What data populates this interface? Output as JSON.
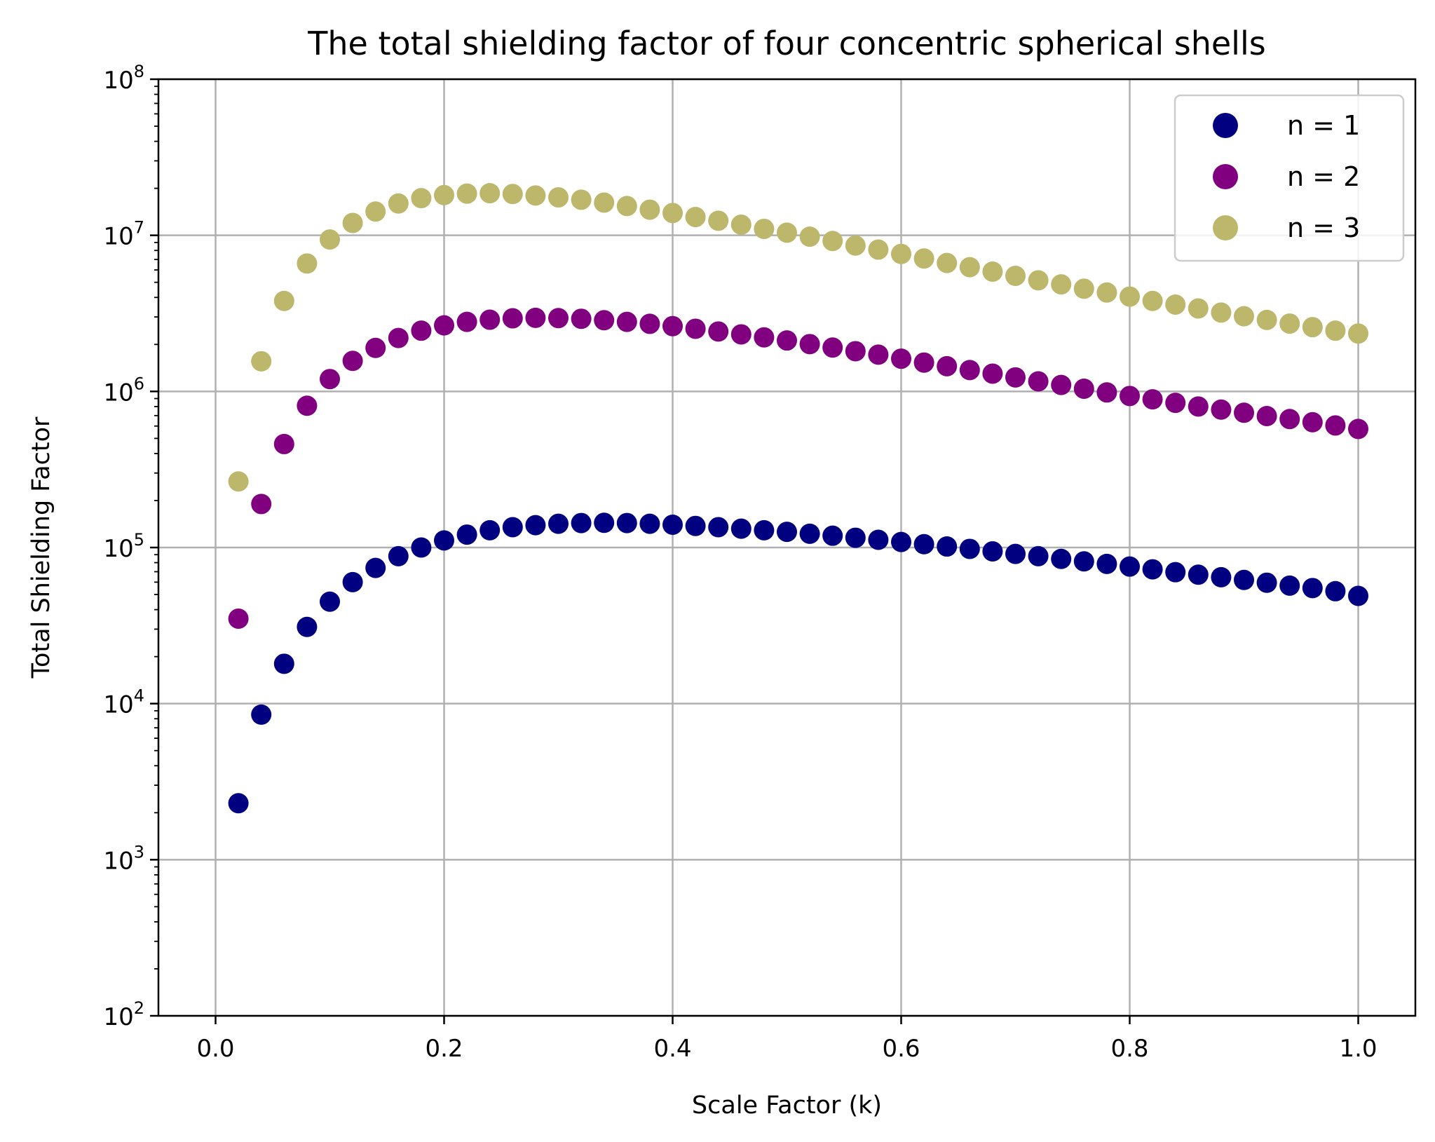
{
  "chart_data": {
    "type": "scatter",
    "title": "The total shielding factor of four concentric spherical shells",
    "xlabel": "Scale Factor (k)",
    "ylabel": "Total Shielding Factor",
    "xlim": [
      -0.05,
      1.05
    ],
    "ylim": [
      100,
      100000000
    ],
    "yscale": "log",
    "grid": true,
    "legend_position": "top-right",
    "x_ticks": [
      "0.0",
      "0.2",
      "0.4",
      "0.6",
      "0.8",
      "1.0"
    ],
    "y_ticks": [
      {
        "base": "10",
        "exp": "2"
      },
      {
        "base": "10",
        "exp": "3"
      },
      {
        "base": "10",
        "exp": "4"
      },
      {
        "base": "10",
        "exp": "5"
      },
      {
        "base": "10",
        "exp": "6"
      },
      {
        "base": "10",
        "exp": "7"
      },
      {
        "base": "10",
        "exp": "8"
      }
    ],
    "x": [
      0.02,
      0.04,
      0.06,
      0.08,
      0.1,
      0.12,
      0.14,
      0.16,
      0.18,
      0.2,
      0.22,
      0.24,
      0.26,
      0.28,
      0.3,
      0.32,
      0.34,
      0.36,
      0.38,
      0.4,
      0.42,
      0.44,
      0.46,
      0.48,
      0.5,
      0.52,
      0.54,
      0.56,
      0.58,
      0.6,
      0.62,
      0.64,
      0.66,
      0.68,
      0.7,
      0.72,
      0.74,
      0.76,
      0.78,
      0.8,
      0.82,
      0.84,
      0.86,
      0.88,
      0.9,
      0.92,
      0.94,
      0.96,
      0.98,
      1.0
    ],
    "series": [
      {
        "name": "n = 1",
        "color": "#000080",
        "values": [
          2300,
          8500,
          18000,
          31000,
          45000,
          60000,
          74000,
          88000,
          100000,
          111000,
          121000,
          129000,
          135000,
          139000,
          142000,
          143500,
          144000,
          143500,
          142000,
          140000,
          137500,
          135000,
          132000,
          129000,
          126000,
          122500,
          119000,
          115500,
          112000,
          108500,
          105000,
          101500,
          98000,
          94500,
          91000,
          88000,
          84500,
          81500,
          78500,
          75500,
          72500,
          69500,
          67000,
          64500,
          62000,
          59500,
          57000,
          55000,
          52500,
          49000
        ]
      },
      {
        "name": "n = 2",
        "color": "#800080",
        "values": [
          35000,
          190000,
          460000,
          810000,
          1200000,
          1570000,
          1900000,
          2200000,
          2450000,
          2650000,
          2790000,
          2880000,
          2940000,
          2960000,
          2950000,
          2920000,
          2860000,
          2790000,
          2710000,
          2620000,
          2520000,
          2420000,
          2320000,
          2220000,
          2120000,
          2010000,
          1910000,
          1810000,
          1720000,
          1620000,
          1530000,
          1450000,
          1370000,
          1300000,
          1230000,
          1160000,
          1100000,
          1040000,
          985000,
          935000,
          890000,
          845000,
          800000,
          765000,
          730000,
          695000,
          665000,
          635000,
          605000,
          575000
        ]
      },
      {
        "name": "n = 3",
        "color": "#bdb76b",
        "values": [
          265000,
          1560000,
          3800000,
          6600000,
          9400000,
          12000000,
          14200000,
          16000000,
          17300000,
          18100000,
          18500000,
          18600000,
          18400000,
          18000000,
          17500000,
          16900000,
          16200000,
          15400000,
          14600000,
          13900000,
          13100000,
          12400000,
          11700000,
          11000000,
          10400000,
          9800000,
          9200000,
          8600000,
          8100000,
          7600000,
          7100000,
          6650000,
          6250000,
          5850000,
          5500000,
          5150000,
          4850000,
          4550000,
          4300000,
          4050000,
          3800000,
          3600000,
          3400000,
          3200000,
          3030000,
          2870000,
          2720000,
          2580000,
          2450000,
          2350000
        ]
      }
    ]
  }
}
